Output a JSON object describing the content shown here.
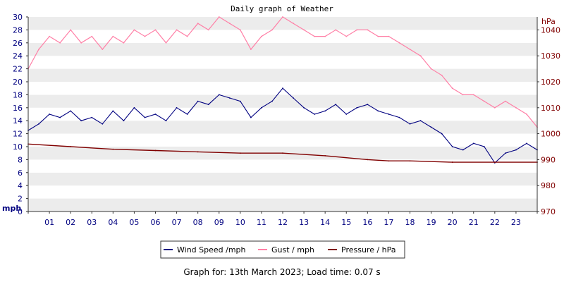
{
  "chart_data": {
    "type": "line",
    "title": "Daily graph of Weather",
    "left_axis": {
      "unit": "mph",
      "range": [
        0,
        30
      ],
      "ticks": [
        0,
        2,
        4,
        6,
        8,
        10,
        12,
        14,
        16,
        18,
        20,
        22,
        24,
        26,
        28,
        30
      ]
    },
    "right_axis": {
      "unit": "hPa",
      "range": [
        970,
        1045
      ],
      "ticks": [
        970,
        980,
        990,
        1000,
        1010,
        1020,
        1030,
        1040
      ]
    },
    "x_ticks": [
      "01",
      "02",
      "03",
      "04",
      "05",
      "06",
      "07",
      "08",
      "09",
      "10",
      "11",
      "12",
      "13",
      "14",
      "15",
      "16",
      "17",
      "18",
      "19",
      "20",
      "21",
      "22",
      "23"
    ],
    "x_range_hours": [
      0,
      24
    ],
    "grid": "alternating horizontal bands",
    "legend_position": "bottom-center",
    "series": [
      {
        "name": "Wind Speed /mph",
        "axis": "left",
        "color": "#000080",
        "x": [
          0,
          0.5,
          1,
          1.5,
          2,
          2.5,
          3,
          3.5,
          4,
          4.5,
          5,
          5.5,
          6,
          6.5,
          7,
          7.5,
          8,
          8.5,
          9,
          9.5,
          10,
          10.5,
          11,
          11.5,
          12,
          12.5,
          13,
          13.5,
          14,
          14.5,
          15,
          15.5,
          16,
          16.5,
          17,
          17.5,
          18,
          18.5,
          19,
          19.5,
          20,
          20.5,
          21,
          21.5,
          22,
          22.5,
          23,
          23.5,
          24
        ],
        "values": [
          12.5,
          13.5,
          15,
          14.5,
          15.5,
          14,
          14.5,
          13.5,
          15.5,
          14,
          16,
          14.5,
          15,
          14,
          16,
          15,
          17,
          16.5,
          18,
          17.5,
          17,
          14.5,
          16,
          17,
          19,
          17.5,
          16,
          15,
          15.5,
          16.5,
          15,
          16,
          16.5,
          15.5,
          15,
          14.5,
          13.5,
          14,
          13,
          12,
          10,
          9.5,
          10.5,
          10,
          7.5,
          9,
          9.5,
          10.5,
          9.5
        ]
      },
      {
        "name": "Gust / mph",
        "axis": "left",
        "color": "#ff7fa6",
        "x": [
          0,
          0.5,
          1,
          1.5,
          2,
          2.5,
          3,
          3.5,
          4,
          4.5,
          5,
          5.5,
          6,
          6.5,
          7,
          7.5,
          8,
          8.5,
          9,
          9.5,
          10,
          10.5,
          11,
          11.5,
          12,
          12.5,
          13,
          13.5,
          14,
          14.5,
          15,
          15.5,
          16,
          16.5,
          17,
          17.5,
          18,
          18.5,
          19,
          19.5,
          20,
          20.5,
          21,
          21.5,
          22,
          22.5,
          23,
          23.5,
          24
        ],
        "values": [
          22,
          25,
          27,
          26,
          28,
          26,
          27,
          25,
          27,
          26,
          28,
          27,
          28,
          26,
          28,
          27,
          29,
          28,
          30,
          29,
          28,
          25,
          27,
          28,
          30,
          29,
          28,
          27,
          27,
          28,
          27,
          28,
          28,
          27,
          27,
          26,
          25,
          24,
          22,
          21,
          19,
          18,
          18,
          17,
          16,
          17,
          16,
          15,
          13
        ]
      },
      {
        "name": "Pressure / hPa",
        "axis": "right",
        "color": "#800000",
        "x": [
          0,
          2,
          4,
          6,
          8,
          10,
          12,
          14,
          16,
          17,
          18,
          20,
          22,
          24
        ],
        "values": [
          996,
          995,
          994,
          993.5,
          993,
          992.5,
          992.5,
          991.5,
          990,
          989.5,
          989.5,
          989,
          989,
          989
        ]
      }
    ]
  },
  "footer": "Graph for: 13th March 2023; Load time: 0.07 s"
}
